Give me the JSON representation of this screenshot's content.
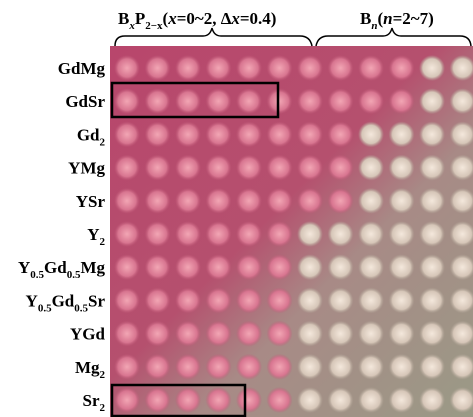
{
  "header": {
    "left": [
      "B",
      "x",
      "P",
      "2−x",
      "(",
      "x",
      "=0~2, Δ",
      "x",
      "=0.4)"
    ],
    "right": [
      "B",
      "n",
      "(",
      "n",
      "=2~7)"
    ]
  },
  "rows": [
    [
      "GdMg"
    ],
    [
      "GdSr"
    ],
    [
      "Gd",
      "2"
    ],
    [
      "YMg"
    ],
    [
      "YSr"
    ],
    [
      "Y",
      "2"
    ],
    [
      "Y",
      "0.5",
      "Gd",
      "0.5",
      "Mg"
    ],
    [
      "Y",
      "0.5",
      "Gd",
      "0.5",
      "Sr"
    ],
    [
      "YGd"
    ],
    [
      "Mg",
      "2"
    ],
    [
      "Sr",
      "2"
    ]
  ]
}
